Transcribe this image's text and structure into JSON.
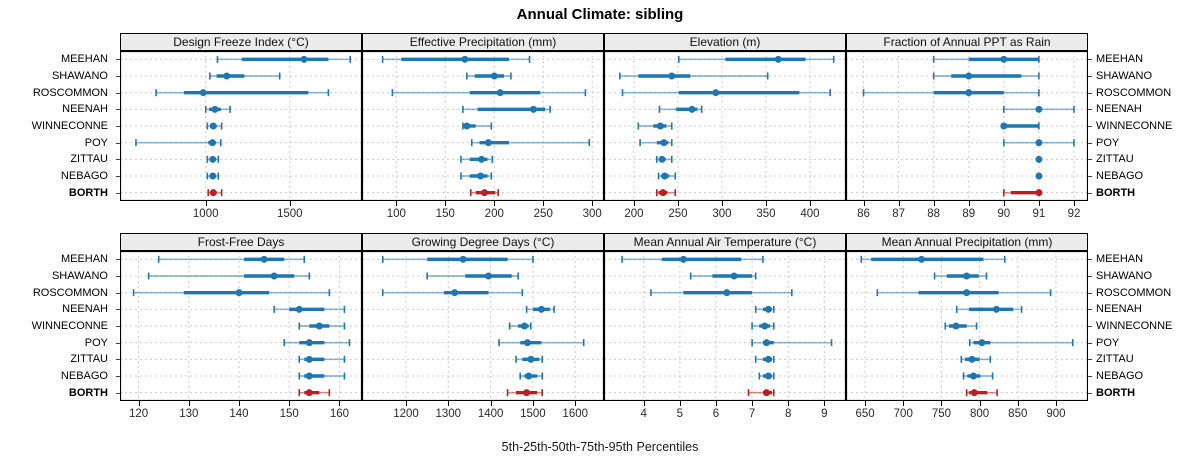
{
  "title": "Annual Climate: sibling",
  "caption": "5th-25th-50th-75th-95th Percentiles",
  "sites": [
    "MEEHAN",
    "SHAWANO",
    "ROSCOMMON",
    "NEENAH",
    "WINNECONNE",
    "POY",
    "ZITTAU",
    "NEBAGO",
    "BORTH"
  ],
  "highlight_site": "BORTH",
  "colors": {
    "series": "#1d77b4",
    "highlight": "#b72025",
    "strip_bg": "#ececec",
    "grid": "#cccccc",
    "border": "#000000",
    "tick_label": "#2b2b2b"
  },
  "chart_data": [
    {
      "type": "dot-whisker",
      "percentiles": [
        5,
        25,
        50,
        75,
        95
      ],
      "title": "Design Freeze Index (°C)",
      "slug": "design-freeze-index",
      "xlim": [
        490,
        1930
      ],
      "ticks": [
        1000,
        1500
      ],
      "series": [
        {
          "site": "MEEHAN",
          "values": [
            1070,
            1215,
            1585,
            1730,
            1860
          ]
        },
        {
          "site": "SHAWANO",
          "values": [
            1025,
            1065,
            1125,
            1230,
            1440
          ]
        },
        {
          "site": "ROSCOMMON",
          "values": [
            705,
            870,
            985,
            1610,
            1730
          ]
        },
        {
          "site": "NEENAH",
          "values": [
            1000,
            1020,
            1055,
            1090,
            1145
          ]
        },
        {
          "site": "WINNECONNE",
          "values": [
            1010,
            1025,
            1045,
            1065,
            1095
          ]
        },
        {
          "site": "POY",
          "values": [
            585,
            1015,
            1040,
            1060,
            1090
          ]
        },
        {
          "site": "ZITTAU",
          "values": [
            1010,
            1028,
            1042,
            1058,
            1075
          ]
        },
        {
          "site": "NEBAGO",
          "values": [
            1010,
            1028,
            1042,
            1058,
            1075
          ]
        },
        {
          "site": "BORTH",
          "values": [
            1015,
            1030,
            1045,
            1065,
            1095
          ]
        }
      ]
    },
    {
      "type": "dot-whisker",
      "percentiles": [
        5,
        25,
        50,
        75,
        95
      ],
      "title": "Effective Precipitation (mm)",
      "slug": "effective-precipitation",
      "xlim": [
        65,
        312
      ],
      "ticks": [
        100,
        150,
        200,
        250,
        300
      ],
      "series": [
        {
          "site": "MEEHAN",
          "values": [
            86,
            105,
            170,
            215,
            236
          ]
        },
        {
          "site": "SHAWANO",
          "values": [
            172,
            180,
            200,
            210,
            217
          ]
        },
        {
          "site": "ROSCOMMON",
          "values": [
            96,
            175,
            206,
            247,
            293
          ]
        },
        {
          "site": "NEENAH",
          "values": [
            168,
            183,
            240,
            252,
            257
          ]
        },
        {
          "site": "WINNECONNE",
          "values": [
            168,
            170,
            172,
            181,
            197
          ]
        },
        {
          "site": "POY",
          "values": [
            177,
            185,
            194,
            215,
            297
          ]
        },
        {
          "site": "ZITTAU",
          "values": [
            166,
            175,
            187,
            193,
            198
          ]
        },
        {
          "site": "NEBAGO",
          "values": [
            166,
            175,
            186,
            193,
            197
          ]
        },
        {
          "site": "BORTH",
          "values": [
            176,
            181,
            190,
            201,
            204
          ]
        }
      ]
    },
    {
      "type": "dot-whisker",
      "percentiles": [
        5,
        25,
        50,
        75,
        95
      ],
      "title": "Elevation (m)",
      "slug": "elevation",
      "xlim": [
        166,
        441
      ],
      "ticks": [
        200,
        250,
        300,
        350,
        400
      ],
      "series": [
        {
          "site": "MEEHAN",
          "values": [
            251,
            304,
            364,
            395,
            427
          ]
        },
        {
          "site": "SHAWANO",
          "values": [
            184,
            205,
            243,
            264,
            352
          ]
        },
        {
          "site": "ROSCOMMON",
          "values": [
            187,
            251,
            293,
            388,
            423
          ]
        },
        {
          "site": "NEENAH",
          "values": [
            229,
            248,
            266,
            272,
            277
          ]
        },
        {
          "site": "WINNECONNE",
          "values": [
            205,
            222,
            230,
            237,
            243
          ]
        },
        {
          "site": "POY",
          "values": [
            207,
            226,
            234,
            239,
            243
          ]
        },
        {
          "site": "ZITTAU",
          "values": [
            226,
            229,
            232,
            236,
            243
          ]
        },
        {
          "site": "NEBAGO",
          "values": [
            228,
            231,
            235,
            240,
            247
          ]
        },
        {
          "site": "BORTH",
          "values": [
            226,
            228,
            233,
            238,
            247
          ]
        }
      ]
    },
    {
      "type": "dot-whisker",
      "percentiles": [
        5,
        25,
        50,
        75,
        95
      ],
      "title": "Fraction of Annual PPT as Rain",
      "slug": "fraction-ppt-rain",
      "xlim": [
        85.5,
        92.4
      ],
      "ticks": [
        86,
        87,
        88,
        89,
        90,
        91,
        92
      ],
      "series": [
        {
          "site": "MEEHAN",
          "values": [
            88,
            89,
            90,
            91,
            91
          ]
        },
        {
          "site": "SHAWANO",
          "values": [
            88,
            88.5,
            89,
            90.5,
            91
          ]
        },
        {
          "site": "ROSCOMMON",
          "values": [
            86,
            88,
            89,
            90,
            91
          ]
        },
        {
          "site": "NEENAH",
          "values": [
            90,
            91,
            91,
            91,
            92
          ]
        },
        {
          "site": "WINNECONNE",
          "values": [
            90,
            90,
            90,
            91,
            91
          ]
        },
        {
          "site": "POY",
          "values": [
            90,
            91,
            91,
            91,
            92
          ]
        },
        {
          "site": "ZITTAU",
          "values": [
            91,
            91,
            91,
            91,
            91
          ]
        },
        {
          "site": "NEBAGO",
          "values": [
            91,
            91,
            91,
            91,
            91
          ]
        },
        {
          "site": "BORTH",
          "values": [
            90,
            90.2,
            91,
            91,
            91
          ]
        }
      ]
    },
    {
      "type": "dot-whisker",
      "percentiles": [
        5,
        25,
        50,
        75,
        95
      ],
      "title": "Frost-Free Days",
      "slug": "frost-free-days",
      "xlim": [
        116.3,
        164.5
      ],
      "ticks": [
        120,
        130,
        140,
        150,
        160
      ],
      "series": [
        {
          "site": "MEEHAN",
          "values": [
            124,
            141,
            145,
            149,
            153
          ]
        },
        {
          "site": "SHAWANO",
          "values": [
            122,
            141,
            147,
            151,
            154
          ]
        },
        {
          "site": "ROSCOMMON",
          "values": [
            119,
            129,
            140,
            146,
            158
          ]
        },
        {
          "site": "NEENAH",
          "values": [
            147,
            150,
            152,
            157,
            161
          ]
        },
        {
          "site": "WINNECONNE",
          "values": [
            152,
            154,
            156,
            158,
            161
          ]
        },
        {
          "site": "POY",
          "values": [
            149,
            152,
            154,
            157,
            162
          ]
        },
        {
          "site": "ZITTAU",
          "values": [
            152,
            153,
            154,
            157,
            161
          ]
        },
        {
          "site": "NEBAGO",
          "values": [
            152,
            153,
            154,
            157,
            161
          ]
        },
        {
          "site": "BORTH",
          "values": [
            152,
            153,
            154,
            156,
            158
          ]
        }
      ]
    },
    {
      "type": "dot-whisker",
      "percentiles": [
        5,
        25,
        50,
        75,
        95
      ],
      "title": "Growing Degree Days (°C)",
      "slug": "growing-degree-days",
      "xlim": [
        1096,
        1668
      ],
      "ticks": [
        1200,
        1300,
        1400,
        1500,
        1600
      ],
      "series": [
        {
          "site": "MEEHAN",
          "values": [
            1145,
            1250,
            1335,
            1440,
            1500
          ]
        },
        {
          "site": "SHAWANO",
          "values": [
            1250,
            1340,
            1395,
            1450,
            1465
          ]
        },
        {
          "site": "ROSCOMMON",
          "values": [
            1145,
            1290,
            1315,
            1395,
            1475
          ]
        },
        {
          "site": "NEENAH",
          "values": [
            1485,
            1500,
            1520,
            1540,
            1550
          ]
        },
        {
          "site": "WINNECONNE",
          "values": [
            1445,
            1465,
            1480,
            1490,
            1495
          ]
        },
        {
          "site": "POY",
          "values": [
            1420,
            1470,
            1487,
            1520,
            1620
          ]
        },
        {
          "site": "ZITTAU",
          "values": [
            1460,
            1475,
            1495,
            1515,
            1522
          ]
        },
        {
          "site": "NEBAGO",
          "values": [
            1470,
            1480,
            1490,
            1510,
            1522
          ]
        },
        {
          "site": "BORTH",
          "values": [
            1440,
            1460,
            1485,
            1510,
            1522
          ]
        }
      ]
    },
    {
      "type": "dot-whisker",
      "percentiles": [
        5,
        25,
        50,
        75,
        95
      ],
      "title": "Mean Annual Air Temperature (°C)",
      "slug": "mean-annual-air-temperature",
      "xlim": [
        2.9,
        9.6
      ],
      "ticks": [
        4,
        5,
        6,
        7,
        8,
        9
      ],
      "series": [
        {
          "site": "MEEHAN",
          "values": [
            3.4,
            4.5,
            5.1,
            6.7,
            7.3
          ]
        },
        {
          "site": "SHAWANO",
          "values": [
            5.3,
            5.9,
            6.5,
            7.0,
            7.1
          ]
        },
        {
          "site": "ROSCOMMON",
          "values": [
            4.2,
            5.1,
            6.3,
            7.0,
            8.1
          ]
        },
        {
          "site": "NEENAH",
          "values": [
            7.1,
            7.3,
            7.45,
            7.55,
            7.6
          ]
        },
        {
          "site": "WINNECONNE",
          "values": [
            7.0,
            7.2,
            7.35,
            7.5,
            7.6
          ]
        },
        {
          "site": "POY",
          "values": [
            7.0,
            7.3,
            7.4,
            7.6,
            9.2
          ]
        },
        {
          "site": "ZITTAU",
          "values": [
            7.1,
            7.3,
            7.45,
            7.55,
            7.6
          ]
        },
        {
          "site": "NEBAGO",
          "values": [
            7.2,
            7.3,
            7.45,
            7.55,
            7.6
          ]
        },
        {
          "site": "BORTH",
          "values": [
            6.9,
            7.3,
            7.4,
            7.55,
            7.6
          ]
        }
      ]
    },
    {
      "type": "dot-whisker",
      "percentiles": [
        5,
        25,
        50,
        75,
        95
      ],
      "title": "Mean Annual Precipitation (mm)",
      "slug": "mean-annual-precipitation",
      "xlim": [
        625,
        942
      ],
      "ticks": [
        650,
        700,
        750,
        800,
        850,
        900
      ],
      "series": [
        {
          "site": "MEEHAN",
          "values": [
            645,
            658,
            724,
            805,
            833
          ]
        },
        {
          "site": "SHAWANO",
          "values": [
            741,
            757,
            783,
            799,
            809
          ]
        },
        {
          "site": "ROSCOMMON",
          "values": [
            666,
            720,
            783,
            825,
            893
          ]
        },
        {
          "site": "NEENAH",
          "values": [
            770,
            786,
            822,
            844,
            855
          ]
        },
        {
          "site": "WINNECONNE",
          "values": [
            755,
            760,
            769,
            783,
            796
          ]
        },
        {
          "site": "POY",
          "values": [
            787,
            792,
            803,
            814,
            922
          ]
        },
        {
          "site": "ZITTAU",
          "values": [
            776,
            781,
            790,
            800,
            814
          ]
        },
        {
          "site": "NEBAGO",
          "values": [
            779,
            784,
            792,
            801,
            817
          ]
        },
        {
          "site": "BORTH",
          "values": [
            783,
            786,
            793,
            810,
            823
          ]
        }
      ]
    }
  ]
}
